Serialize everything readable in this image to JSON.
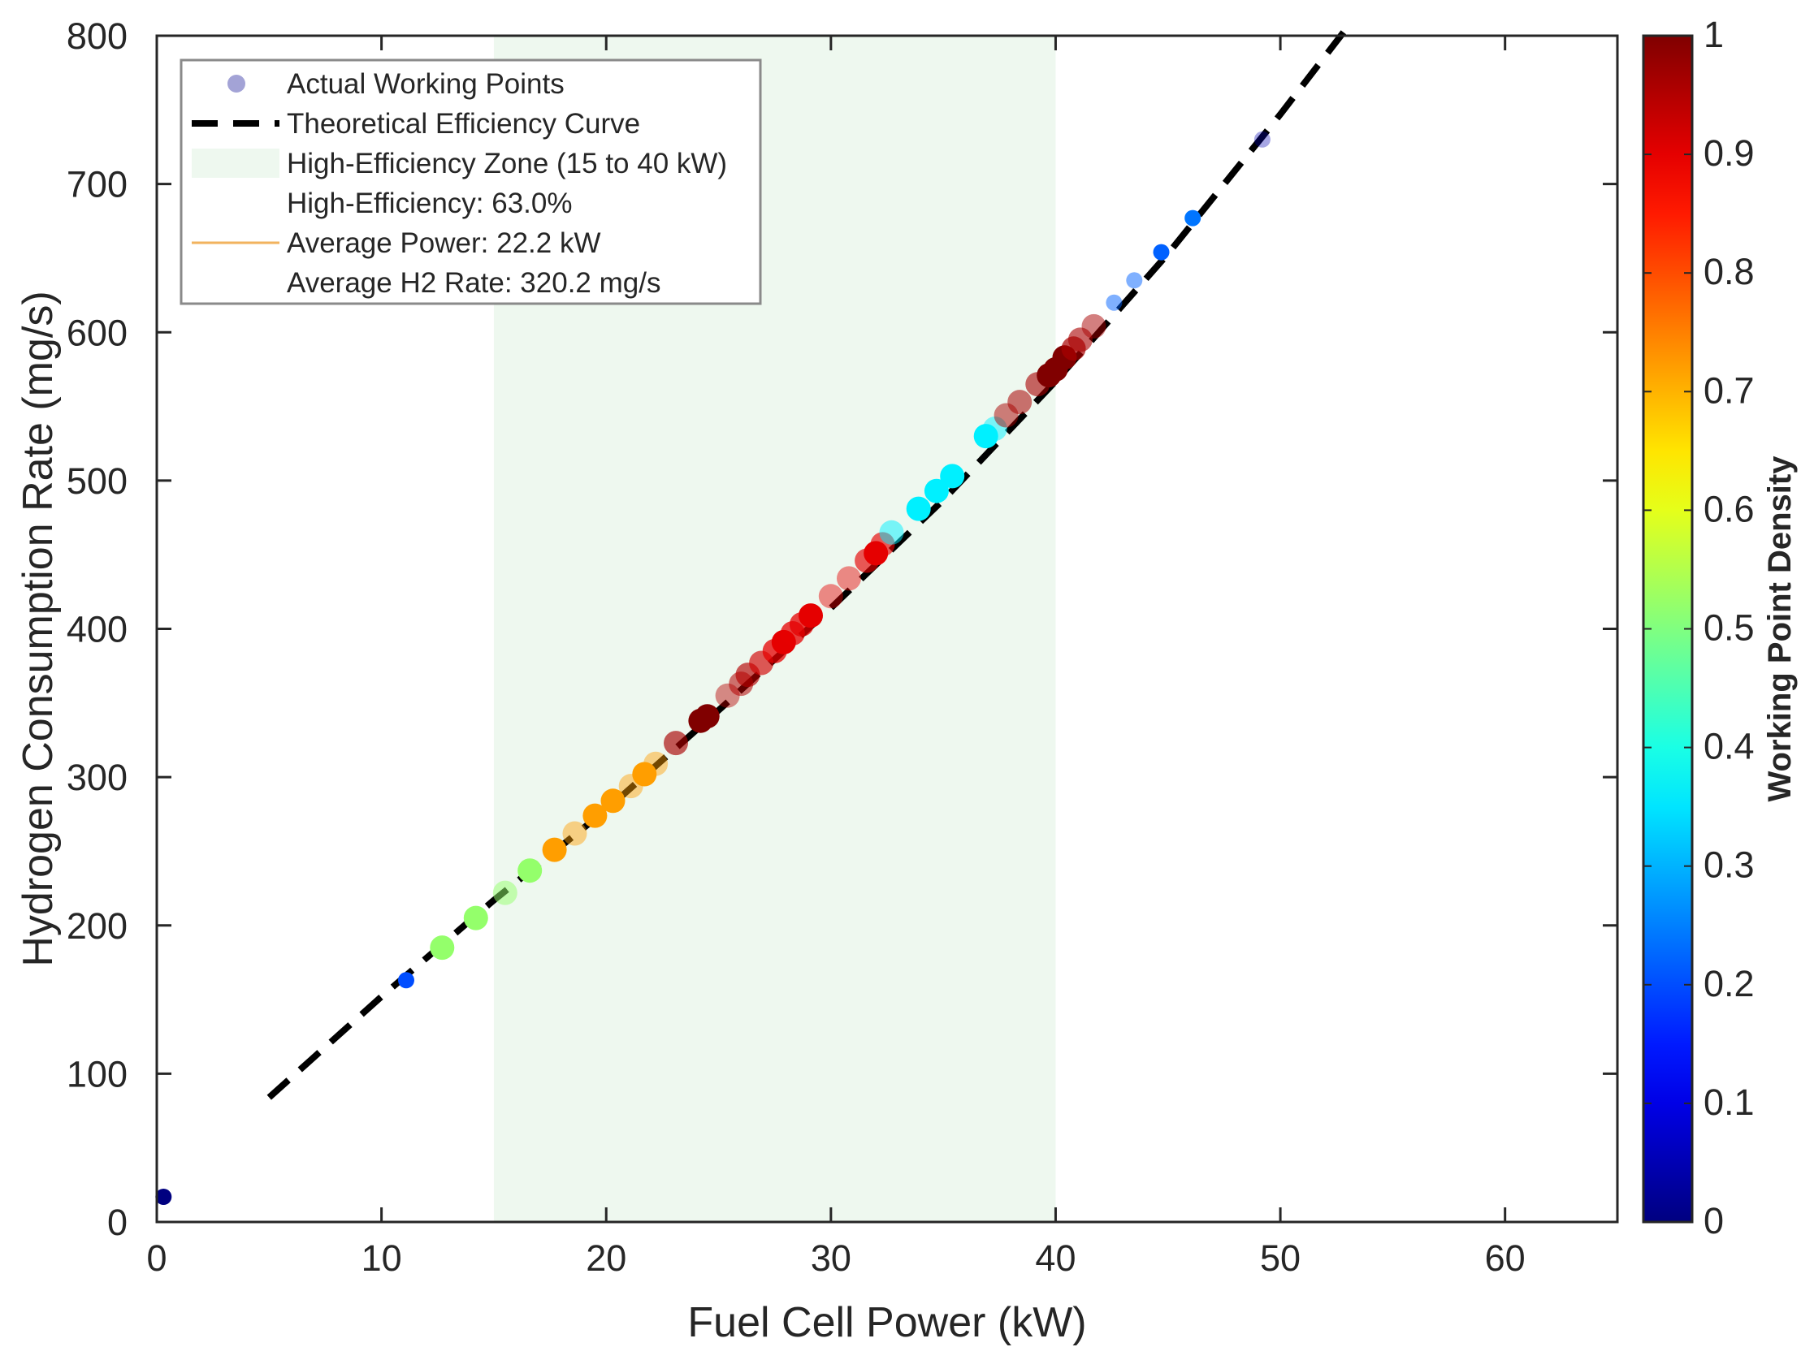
{
  "chart_data": {
    "type": "scatter",
    "xlabel": "Fuel Cell Power (kW)",
    "ylabel": "Hydrogen Consumption Rate (mg/s)",
    "xlim": [
      0,
      65
    ],
    "ylim": [
      0,
      800
    ],
    "xticks": [
      0,
      10,
      20,
      30,
      40,
      50,
      60
    ],
    "yticks": [
      0,
      100,
      200,
      300,
      400,
      500,
      600,
      700,
      800
    ],
    "grid": false,
    "legend_position": "top-left",
    "legend": [
      {
        "label": "Actual Working Points",
        "marker": "dot",
        "color": "#a3a3d6"
      },
      {
        "label": "Theoretical Efficiency Curve",
        "marker": "dashed-line",
        "color": "#000000"
      },
      {
        "label": "High-Efficiency Zone (15 to 40 kW)",
        "marker": "patch",
        "color": "#eef8ef"
      },
      {
        "label": "High-Efficiency: 63.0%",
        "marker": "none"
      },
      {
        "label": "Average Power: 22.2 kW",
        "marker": "line",
        "color": "#f2b35e"
      },
      {
        "label": "Average H2 Rate: 320.2 mg/s",
        "marker": "none"
      }
    ],
    "shaded_region": {
      "x_from": 15,
      "x_to": 40,
      "color": "#eef8ef"
    },
    "theoretical_curve": {
      "style": "dashed",
      "color": "#000000",
      "x": [
        5,
        10,
        15,
        20,
        25,
        30,
        35,
        40,
        45,
        50,
        53.2
      ],
      "y": [
        84,
        152,
        217,
        278,
        345,
        414,
        487,
        567,
        653,
        747,
        810
      ]
    },
    "colorbar": {
      "label": "Working Point Density",
      "min": 0,
      "max": 1,
      "ticks": [
        0,
        0.1,
        0.2,
        0.3,
        0.4,
        0.5,
        0.6,
        0.7,
        0.8,
        0.9,
        1
      ],
      "tick_labels": [
        "0",
        "0.1",
        "0.2",
        "0.3",
        "0.4",
        "0.5",
        "0.6",
        "0.7",
        "0.8",
        "0.9",
        "1"
      ],
      "colormap": "jet"
    },
    "points": [
      {
        "x": 0.3,
        "y": 17,
        "density": 0.0,
        "size": "small",
        "alpha": 1.0
      },
      {
        "x": 11.1,
        "y": 163,
        "density": 0.2,
        "size": "small",
        "alpha": 1.0
      },
      {
        "x": 12.7,
        "y": 185,
        "density": 0.52,
        "size": "large",
        "alpha": 1.0
      },
      {
        "x": 14.2,
        "y": 205,
        "density": 0.52,
        "size": "large",
        "alpha": 1.0
      },
      {
        "x": 15.5,
        "y": 222,
        "density": 0.52,
        "size": "large",
        "alpha": 0.5
      },
      {
        "x": 16.6,
        "y": 237,
        "density": 0.52,
        "size": "large",
        "alpha": 1.0
      },
      {
        "x": 17.7,
        "y": 251,
        "density": 0.72,
        "size": "large",
        "alpha": 1.0
      },
      {
        "x": 18.6,
        "y": 262,
        "density": 0.72,
        "size": "large",
        "alpha": 0.45
      },
      {
        "x": 19.5,
        "y": 274,
        "density": 0.72,
        "size": "large",
        "alpha": 1.0
      },
      {
        "x": 20.3,
        "y": 284,
        "density": 0.72,
        "size": "large",
        "alpha": 1.0
      },
      {
        "x": 21.1,
        "y": 294,
        "density": 0.72,
        "size": "large",
        "alpha": 0.45
      },
      {
        "x": 21.7,
        "y": 302,
        "density": 0.72,
        "size": "large",
        "alpha": 1.0
      },
      {
        "x": 22.2,
        "y": 309,
        "density": 0.72,
        "size": "large",
        "alpha": 0.45
      },
      {
        "x": 23.1,
        "y": 323,
        "density": 0.96,
        "size": "large",
        "alpha": 0.65
      },
      {
        "x": 24.2,
        "y": 338,
        "density": 1.0,
        "size": "large",
        "alpha": 1.0
      },
      {
        "x": 24.5,
        "y": 341,
        "density": 1.0,
        "size": "large",
        "alpha": 1.0
      },
      {
        "x": 25.4,
        "y": 355,
        "density": 0.95,
        "size": "large",
        "alpha": 0.45
      },
      {
        "x": 26.0,
        "y": 363,
        "density": 0.95,
        "size": "large",
        "alpha": 0.55
      },
      {
        "x": 26.3,
        "y": 369,
        "density": 0.95,
        "size": "large",
        "alpha": 0.65
      },
      {
        "x": 26.9,
        "y": 377,
        "density": 0.92,
        "size": "large",
        "alpha": 0.65
      },
      {
        "x": 27.5,
        "y": 385,
        "density": 0.9,
        "size": "large",
        "alpha": 0.75
      },
      {
        "x": 27.9,
        "y": 391,
        "density": 0.9,
        "size": "large",
        "alpha": 1.0
      },
      {
        "x": 28.3,
        "y": 397,
        "density": 0.9,
        "size": "large",
        "alpha": 0.75
      },
      {
        "x": 28.7,
        "y": 403,
        "density": 0.9,
        "size": "large",
        "alpha": 0.75
      },
      {
        "x": 29.1,
        "y": 409,
        "density": 0.9,
        "size": "large",
        "alpha": 1.0
      },
      {
        "x": 30.0,
        "y": 422,
        "density": 0.9,
        "size": "large",
        "alpha": 0.45
      },
      {
        "x": 30.8,
        "y": 434,
        "density": 0.9,
        "size": "large",
        "alpha": 0.45
      },
      {
        "x": 31.6,
        "y": 446,
        "density": 0.9,
        "size": "large",
        "alpha": 0.65
      },
      {
        "x": 32.0,
        "y": 451,
        "density": 0.9,
        "size": "large",
        "alpha": 1.0
      },
      {
        "x": 32.3,
        "y": 457,
        "density": 0.9,
        "size": "large",
        "alpha": 0.65
      },
      {
        "x": 32.7,
        "y": 465,
        "density": 0.36,
        "size": "large",
        "alpha": 0.5
      },
      {
        "x": 33.9,
        "y": 481,
        "density": 0.36,
        "size": "large",
        "alpha": 1.0
      },
      {
        "x": 34.7,
        "y": 493,
        "density": 0.36,
        "size": "large",
        "alpha": 1.0
      },
      {
        "x": 35.4,
        "y": 503,
        "density": 0.36,
        "size": "large",
        "alpha": 1.0
      },
      {
        "x": 36.9,
        "y": 530,
        "density": 0.36,
        "size": "large",
        "alpha": 1.0
      },
      {
        "x": 37.3,
        "y": 535,
        "density": 0.36,
        "size": "large",
        "alpha": 0.5
      },
      {
        "x": 37.8,
        "y": 544,
        "density": 0.96,
        "size": "large",
        "alpha": 0.5
      },
      {
        "x": 38.4,
        "y": 553,
        "density": 0.96,
        "size": "large",
        "alpha": 0.55
      },
      {
        "x": 39.2,
        "y": 565,
        "density": 0.96,
        "size": "large",
        "alpha": 0.6
      },
      {
        "x": 39.7,
        "y": 571,
        "density": 1.0,
        "size": "large",
        "alpha": 1.0
      },
      {
        "x": 40.0,
        "y": 575,
        "density": 1.0,
        "size": "large",
        "alpha": 1.0
      },
      {
        "x": 40.4,
        "y": 583,
        "density": 1.0,
        "size": "large",
        "alpha": 1.0
      },
      {
        "x": 40.8,
        "y": 589,
        "density": 0.96,
        "size": "large",
        "alpha": 0.7
      },
      {
        "x": 41.1,
        "y": 595,
        "density": 0.96,
        "size": "large",
        "alpha": 0.6
      },
      {
        "x": 41.7,
        "y": 604,
        "density": 0.96,
        "size": "large",
        "alpha": 0.5
      },
      {
        "x": 42.6,
        "y": 620,
        "density": 0.22,
        "size": "small",
        "alpha": 0.5
      },
      {
        "x": 43.5,
        "y": 635,
        "density": 0.22,
        "size": "small",
        "alpha": 0.5
      },
      {
        "x": 44.7,
        "y": 654,
        "density": 0.22,
        "size": "small",
        "alpha": 1.0
      },
      {
        "x": 46.1,
        "y": 677,
        "density": 0.24,
        "size": "small",
        "alpha": 1.0
      },
      {
        "x": 49.2,
        "y": 730,
        "density": 0.05,
        "size": "small",
        "alpha": 0.35
      }
    ]
  }
}
